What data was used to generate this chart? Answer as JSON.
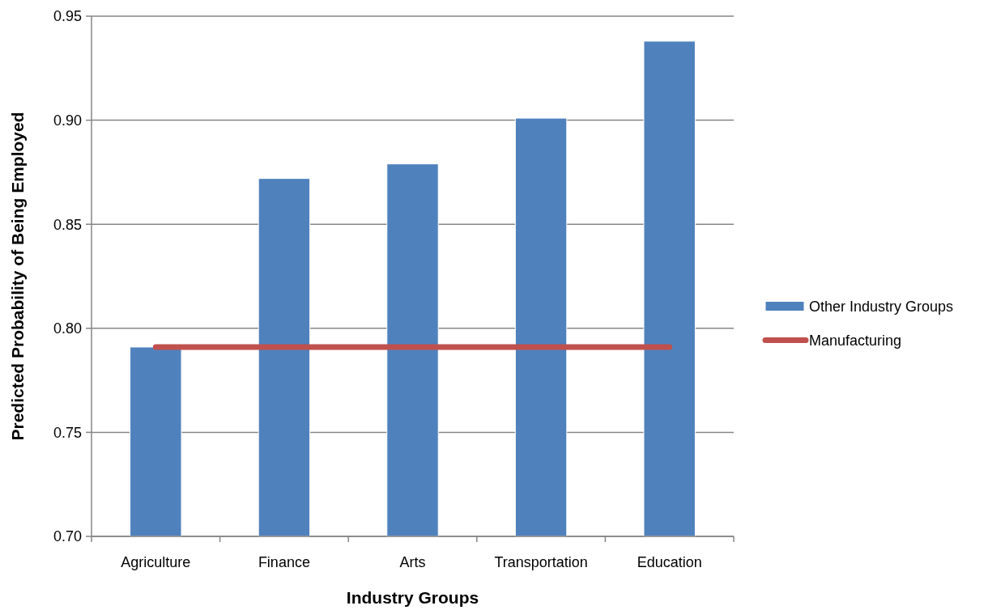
{
  "chart_data": {
    "type": "bar",
    "xlabel": "Industry Groups",
    "ylabel": "Predicted Probability of Being Employed",
    "categories": [
      "Agriculture",
      "Finance",
      "Arts",
      "Transportation",
      "Education"
    ],
    "series": [
      {
        "name": "Other Industry Groups",
        "color": "#4f81bd",
        "values": [
          0.791,
          0.872,
          0.879,
          0.901,
          0.938
        ]
      },
      {
        "name": "Manufacturing",
        "type": "line",
        "color": "#c0504d",
        "values": [
          0.791,
          0.791,
          0.791,
          0.791,
          0.791
        ]
      }
    ],
    "ylim": [
      0.7,
      0.95
    ],
    "yticks": [
      {
        "value": 0.7,
        "label": "0.70"
      },
      {
        "value": 0.75,
        "label": "0.75"
      },
      {
        "value": 0.8,
        "label": "0.80"
      },
      {
        "value": 0.85,
        "label": "0.85"
      },
      {
        "value": 0.9,
        "label": "0.90"
      },
      {
        "value": 0.95,
        "label": "0.95"
      }
    ],
    "grid": "y",
    "legend": "right",
    "marker": "none"
  }
}
